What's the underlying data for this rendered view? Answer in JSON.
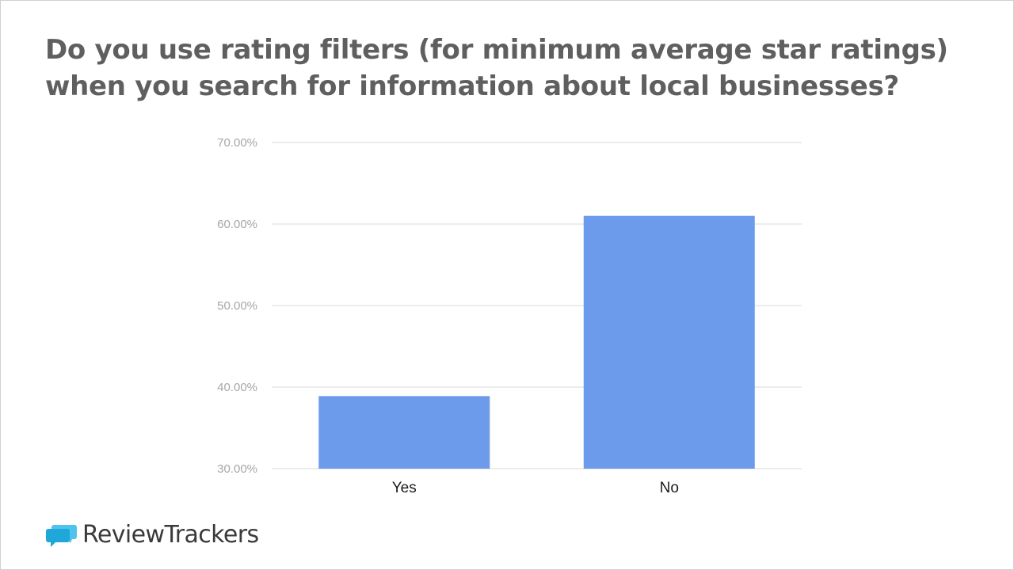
{
  "title_lines": [
    "Do you use rating filters (for minimum average star ratings)",
    "when you search for information about local businesses?"
  ],
  "logo": {
    "part1": "Review",
    "part2": "Trackers",
    "icon": "speech-bubbles-icon",
    "icon_color": "#1fa7d9"
  },
  "colors": {
    "bar": "#6d9beb",
    "grid": "#d9d9d9",
    "tick_label": "#a6a6a6",
    "category_label": "#1a1a1a",
    "title": "#5f5f5f"
  },
  "chart_data": {
    "type": "bar",
    "categories": [
      "Yes",
      "No"
    ],
    "values": [
      38.9,
      61.0
    ],
    "ylim": [
      30,
      70
    ],
    "yticks": [
      "30.00%",
      "40.00%",
      "50.00%",
      "60.00%",
      "70.00%"
    ],
    "xlabel": "",
    "ylabel": "",
    "grid": true,
    "legend": "none"
  }
}
